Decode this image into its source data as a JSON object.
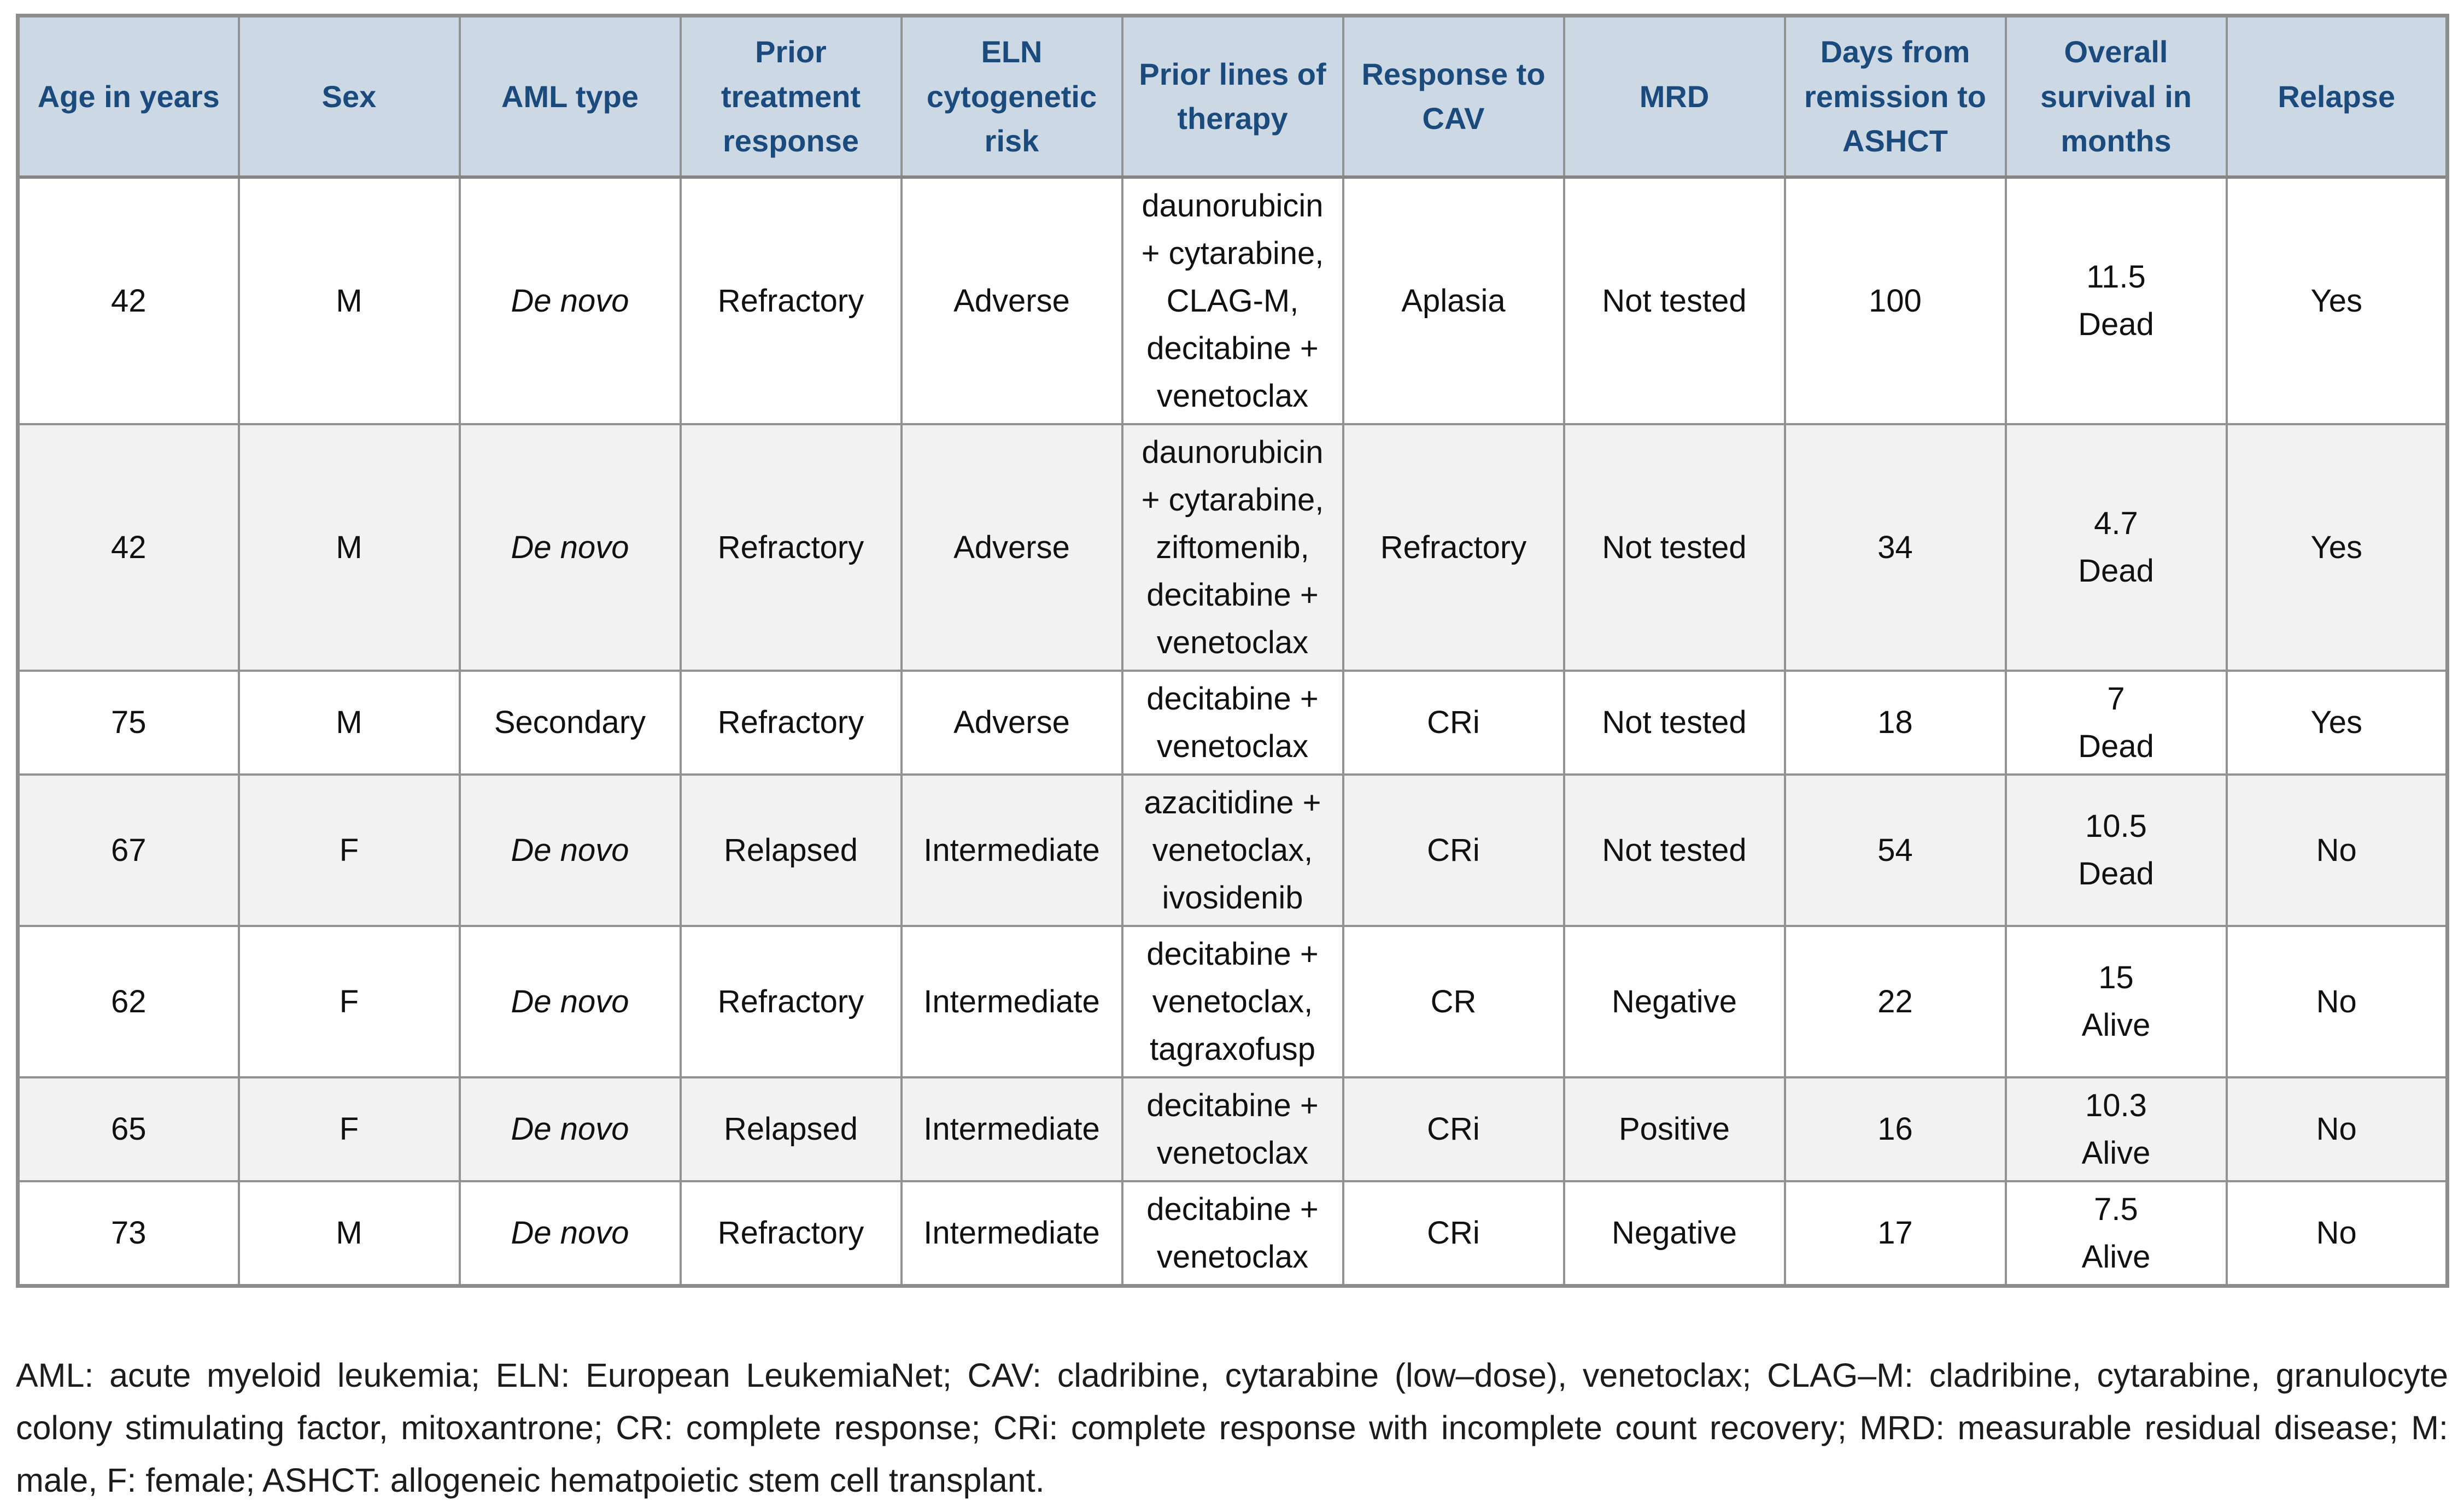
{
  "table": {
    "column_keys": [
      "age",
      "sex",
      "aml-type",
      "prior-treatment-response",
      "eln-cytogenetic-risk",
      "prior-lines-of-therapy",
      "response-to-cav",
      "mrd",
      "days-remission-to-ashct",
      "overall-survival-months",
      "relapse"
    ],
    "columns": [
      {
        "label": "Age in years"
      },
      {
        "label": "Sex"
      },
      {
        "label": "AML type"
      },
      {
        "label": "Prior treatment response"
      },
      {
        "label": "ELN cytogenetic risk"
      },
      {
        "label": "Prior lines of therapy"
      },
      {
        "label": "Response to CAV"
      },
      {
        "label": "MRD"
      },
      {
        "label": "Days from remission to ASHCT"
      },
      {
        "label": "Overall survival in months"
      },
      {
        "label": "Relapse"
      }
    ],
    "rows": [
      {
        "aml_italic": true,
        "cells": [
          "42",
          "M",
          "De novo",
          "Refractory",
          "Adverse",
          "daunorubicin + cytarabine, CLAG-M, decitabine + venetoclax",
          "Aplasia",
          "Not tested",
          "100",
          "11.5\nDead",
          "Yes"
        ]
      },
      {
        "aml_italic": true,
        "cells": [
          "42",
          "M",
          "De novo",
          "Refractory",
          "Adverse",
          "daunorubicin + cytarabine, ziftomenib, decitabine + venetoclax",
          "Refractory",
          "Not tested",
          "34",
          "4.7\nDead",
          "Yes"
        ]
      },
      {
        "aml_italic": false,
        "cells": [
          "75",
          "M",
          "Secondary",
          "Refractory",
          "Adverse",
          "decitabine + venetoclax",
          "CRi",
          "Not tested",
          "18",
          "7\nDead",
          "Yes"
        ]
      },
      {
        "aml_italic": true,
        "cells": [
          "67",
          "F",
          "De novo",
          "Relapsed",
          "Intermediate",
          "azacitidine + venetoclax, ivosidenib",
          "CRi",
          "Not tested",
          "54",
          "10.5\nDead",
          "No"
        ]
      },
      {
        "aml_italic": true,
        "cells": [
          "62",
          "F",
          "De novo",
          "Refractory",
          "Intermediate",
          "decitabine + venetoclax, tagraxofusp",
          "CR",
          "Negative",
          "22",
          "15\nAlive",
          "No"
        ]
      },
      {
        "aml_italic": true,
        "cells": [
          "65",
          "F",
          "De novo",
          "Relapsed",
          "Intermediate",
          "decitabine + venetoclax",
          "CRi",
          "Positive",
          "16",
          "10.3\nAlive",
          "No"
        ]
      },
      {
        "aml_italic": true,
        "cells": [
          "73",
          "M",
          "De novo",
          "Refractory",
          "Intermediate",
          "decitabine + venetoclax",
          "CRi",
          "Negative",
          "17",
          "7.5\nAlive",
          "No"
        ]
      }
    ]
  },
  "footnote": {
    "text": "AML: acute myeloid leukemia; ELN: European LeukemiaNet; CAV: cladribine, cytarabine (low–dose), venetoclax; CLAG–M: cladribine, cytarabine, granulocyte colony stimulating factor, mitoxantrone; CR: complete response; CRi: complete response with incomplete count recovery; MRD: measurable residual disease; M: male, F: female; ASHCT: allogeneic hematpoietic stem cell transplant."
  },
  "colors": {
    "header_background": "#ccd8e3",
    "header_text": "#1b4a7d",
    "zebra_row_background": "#f2f2f2",
    "grid_border": "#929292",
    "body_text": "#111111"
  }
}
